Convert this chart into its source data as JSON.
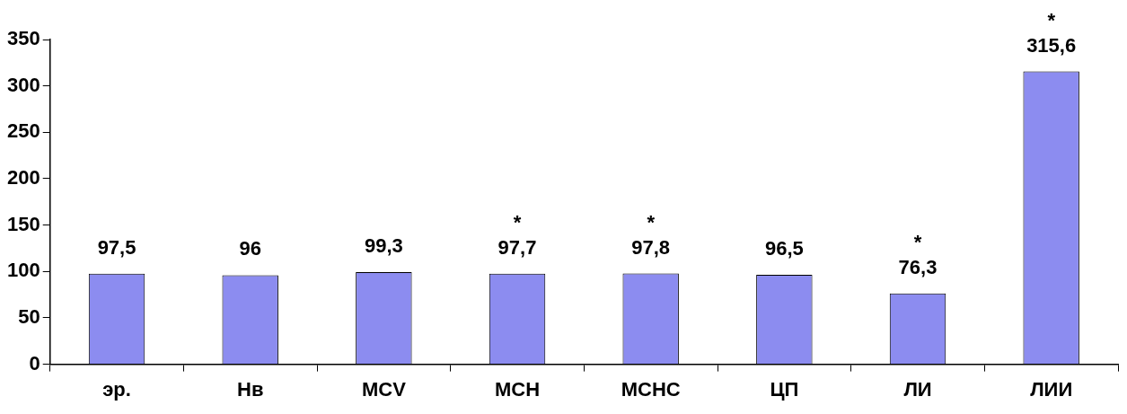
{
  "chart_data": {
    "type": "bar",
    "categories": [
      "эр.",
      "Нв",
      "MCV",
      "MCH",
      "MCHC",
      "ЦП",
      "ЛИ",
      "ЛИИ"
    ],
    "values": [
      97.5,
      96,
      99.3,
      97.7,
      97.8,
      96.5,
      76.3,
      315.6
    ],
    "value_labels": [
      "97,5",
      "96",
      "99,3",
      "97,7",
      "97,8",
      "96,5",
      "76,3",
      "315,6"
    ],
    "color": "#8c8cf0",
    "ylim": [
      0,
      350
    ],
    "yticks": [
      0,
      50,
      100,
      150,
      200,
      250,
      300,
      350
    ],
    "grid": false,
    "legend": false,
    "annotations": [
      {
        "text": "*",
        "x": "MCH",
        "y": 97.7
      },
      {
        "text": "*",
        "x": "MCHC",
        "y": 97.8
      },
      {
        "text": "*",
        "x": "ЛИ",
        "y": 76.3
      },
      {
        "text": "*",
        "x": "ЛИИ",
        "y": 315.6
      }
    ]
  }
}
